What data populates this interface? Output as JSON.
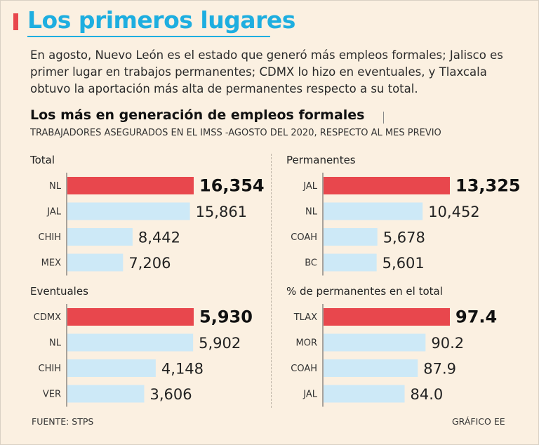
{
  "header": {
    "title": "Los primeros lugares",
    "intro": "En agosto, Nuevo León es el estado que generó más empleos formales; Jalisco es primer lugar en trabajos permanentes; CDMX lo hizo en eventuales, y Tlaxcala obtuvo la aportación más alta de permanentes respecto a su total.",
    "subtitle": "Los más en generación de empleos formales",
    "subsubtitle": "TRABAJADORES ASEGURADOS EN EL IMSS -AGOSTO DEL 2020, RESPECTO AL MES PREVIO"
  },
  "colors": {
    "highlight": "#e8474d",
    "bar": "#cde9f7",
    "title": "#1eaee0",
    "background": "#fbf0e1"
  },
  "chart_data": [
    {
      "type": "bar",
      "orientation": "horizontal",
      "title": "Total",
      "categories": [
        "NL",
        "JAL",
        "CHIH",
        "MEX"
      ],
      "values": [
        16354,
        15861,
        8442,
        7206
      ],
      "labels": [
        "16,354",
        "15,861",
        "8,442",
        "7,206"
      ],
      "xlim": [
        0,
        16354
      ]
    },
    {
      "type": "bar",
      "orientation": "horizontal",
      "title": "Permanentes",
      "categories": [
        "JAL",
        "NL",
        "COAH",
        "BC"
      ],
      "values": [
        13325,
        10452,
        5678,
        5601
      ],
      "labels": [
        "13,325",
        "10,452",
        "5,678",
        "5,601"
      ],
      "xlim": [
        0,
        13325
      ]
    },
    {
      "type": "bar",
      "orientation": "horizontal",
      "title": "Eventuales",
      "categories": [
        "CDMX",
        "NL",
        "CHIH",
        "VER"
      ],
      "values": [
        5930,
        5902,
        4148,
        3606
      ],
      "labels": [
        "5,930",
        "5,902",
        "4,148",
        "3,606"
      ],
      "xlim": [
        0,
        5930
      ]
    },
    {
      "type": "bar",
      "orientation": "horizontal",
      "title": "% de permanentes en el total",
      "categories": [
        "TLAX",
        "MOR",
        "COAH",
        "JAL"
      ],
      "values": [
        97.4,
        90.2,
        87.9,
        84.0
      ],
      "labels": [
        "97.4",
        "90.2",
        "87.9",
        "84.0"
      ],
      "xlim": [
        60,
        97.4
      ]
    }
  ],
  "footer": {
    "source": "FUENTE: STPS",
    "credit": "GRÁFICO EE"
  }
}
